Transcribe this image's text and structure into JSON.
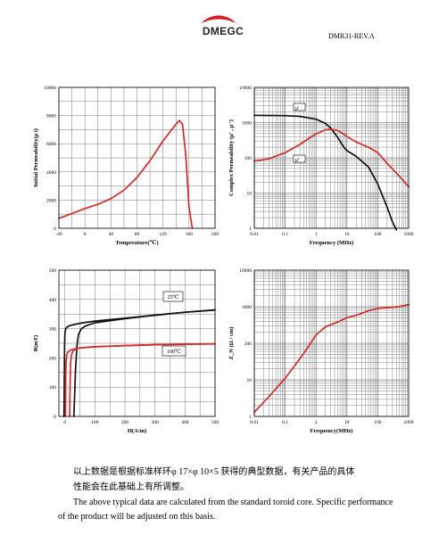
{
  "header": {
    "brand": "DMEGC",
    "doc_code": "DMR31-REV.A"
  },
  "colors": {
    "red_curve": "#d22b2b",
    "black_curve": "#111111",
    "brand_red": "#d21f26",
    "grid": "#555555"
  },
  "caption": {
    "zh_line1": "以上数据是根据标准样环φ 17×φ 10×5 获得的典型数据，有关产品的具体",
    "zh_line2": "性能会在此基础上有所调整。",
    "en": "The above typical data are calculated from the standard toroid core. Specific performance of the product will be adjusted on this basis."
  },
  "chart_data": [
    {
      "type": "line",
      "xlabel": "Temperature(℃)",
      "ylabel": "Initial Permeability(μ i)",
      "xlim": [
        -40,
        200
      ],
      "ylim": [
        0,
        10000
      ],
      "x_ticks": [
        "-40",
        "0",
        "40",
        "80",
        "120",
        "160",
        "200"
      ],
      "y_ticks": [
        "0",
        "2000",
        "4000",
        "6000",
        "8000",
        "10000"
      ],
      "grid": true,
      "series": [
        {
          "color": "#d22b2b",
          "x": [
            -40,
            -20,
            0,
            20,
            40,
            60,
            80,
            100,
            120,
            135,
            145,
            150,
            155,
            160,
            165
          ],
          "y": [
            700,
            1050,
            1400,
            1700,
            2100,
            2700,
            3600,
            4800,
            6200,
            7100,
            7650,
            7400,
            5200,
            1500,
            0
          ]
        }
      ]
    },
    {
      "type": "line",
      "xlabel": "Frequency (MHz)",
      "ylabel": "Complex Permeability (μ' , μ'')",
      "xscale": "log",
      "yscale": "log",
      "xlim": [
        0.01,
        1000
      ],
      "ylim": [
        1,
        10000
      ],
      "x_ticks": [
        "0.01",
        "0.1",
        "1",
        "10",
        "100",
        "1000"
      ],
      "y_ticks": [
        "1",
        "10",
        "100",
        "1000",
        "10000"
      ],
      "grid": true,
      "legend_labels": [
        "μ'",
        "μ''"
      ],
      "series": [
        {
          "name": "μ'",
          "color": "#111111",
          "x": [
            0.01,
            0.1,
            0.3,
            1,
            2,
            3,
            5,
            8,
            10,
            20,
            50,
            100,
            200,
            300,
            400
          ],
          "y": [
            1600,
            1580,
            1500,
            1250,
            950,
            700,
            380,
            200,
            160,
            110,
            55,
            18,
            4,
            1.5,
            0.9
          ]
        },
        {
          "name": "μ''",
          "color": "#d22b2b",
          "x": [
            0.01,
            0.03,
            0.1,
            0.3,
            0.6,
            1,
            2,
            3,
            5,
            8,
            10,
            20,
            50,
            100,
            200,
            500,
            1000
          ],
          "y": [
            80,
            95,
            140,
            240,
            360,
            480,
            620,
            650,
            600,
            470,
            400,
            280,
            200,
            140,
            70,
            30,
            15
          ]
        }
      ]
    },
    {
      "type": "line",
      "xlabel": "H(A/m)",
      "ylabel": "B(mT)",
      "xlim": [
        -20,
        500
      ],
      "ylim": [
        0,
        500
      ],
      "x_ticks": [
        "0",
        "100",
        "200",
        "300",
        "400",
        "500"
      ],
      "y_ticks": [
        "0",
        "100",
        "200",
        "300",
        "400",
        "500"
      ],
      "grid": true,
      "annotations": [
        "25℃",
        "100℃"
      ],
      "series": [
        {
          "name": "25℃",
          "color": "#111111",
          "x": [
            -3,
            -1,
            0,
            1,
            3,
            8,
            15,
            30,
            60,
            100,
            200,
            300,
            400,
            500
          ],
          "y": [
            0,
            240,
            280,
            292,
            300,
            306,
            310,
            314,
            320,
            326,
            336,
            346,
            356,
            364
          ]
        },
        {
          "name": "25℃",
          "color": "#111111",
          "x": [
            30,
            32,
            35,
            40,
            45,
            55,
            70,
            100,
            200,
            300,
            400,
            500
          ],
          "y": [
            0,
            60,
            150,
            240,
            280,
            300,
            310,
            320,
            334,
            346,
            356,
            364
          ]
        },
        {
          "name": "100℃",
          "color": "#d22b2b",
          "x": [
            2,
            3,
            4,
            6,
            10,
            20,
            50,
            100,
            200,
            300,
            400,
            500
          ],
          "y": [
            0,
            150,
            190,
            210,
            220,
            228,
            234,
            238,
            242,
            245,
            247,
            248
          ]
        },
        {
          "name": "100℃",
          "color": "#d22b2b",
          "x": [
            16,
            17,
            19,
            22,
            26,
            35,
            50,
            100,
            200,
            300,
            400,
            500
          ],
          "y": [
            0,
            100,
            180,
            210,
            222,
            230,
            234,
            238,
            242,
            245,
            247,
            248
          ]
        }
      ]
    },
    {
      "type": "line",
      "xlabel": "Frequency(MHz)",
      "ylabel": "Z_N (Ω / cm)",
      "xscale": "log",
      "yscale": "log",
      "xlim": [
        0.01,
        1000
      ],
      "ylim": [
        1,
        10000
      ],
      "x_ticks": [
        "0.01",
        "0.1",
        "1",
        "10",
        "100",
        "1000"
      ],
      "y_ticks": [
        "1",
        "10",
        "100",
        "1000",
        "10000"
      ],
      "grid": true,
      "series": [
        {
          "color": "#d22b2b",
          "x": [
            0.01,
            0.03,
            0.1,
            0.3,
            0.5,
            1,
            2,
            5,
            10,
            20,
            50,
            100,
            200,
            500,
            1000
          ],
          "y": [
            1.3,
            3.5,
            11,
            38,
            70,
            170,
            280,
            380,
            500,
            580,
            780,
            900,
            950,
            1000,
            1150
          ]
        }
      ]
    }
  ]
}
